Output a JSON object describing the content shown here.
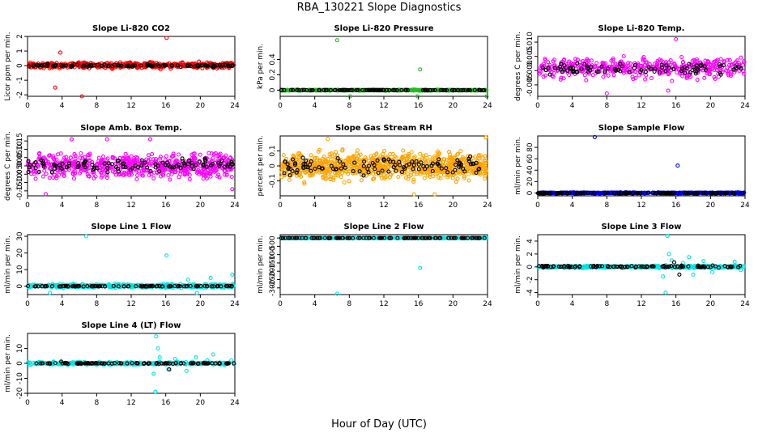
{
  "figure": {
    "title": "RBA_130221  Slope Diagnostics",
    "xlabel": "Hour of Day (UTC)"
  },
  "colors": {
    "red": "#ff0000",
    "green": "#22bb22",
    "magenta": "#ff00ff",
    "orange": "#ffa500",
    "blue": "#0000dd",
    "cyan": "#00e5e5",
    "black": "#000000"
  },
  "chart_data": [
    {
      "type": "scatter",
      "title": "Slope Li-820 CO2",
      "ylabel": "Licor ppm per min.",
      "xlim": [
        0,
        24
      ],
      "ylim": [
        -2.1,
        2.0
      ],
      "xticks": [
        0,
        4,
        8,
        12,
        16,
        20,
        24
      ],
      "yticks": [
        -2,
        -1,
        0,
        1,
        2
      ],
      "grid": false,
      "series": [
        {
          "color": "red",
          "band": [
            -0.3,
            0.35
          ],
          "n": 520,
          "outliers": [
            [
              3.8,
              0.9
            ],
            [
              3.2,
              -1.5
            ],
            [
              6.3,
              -2.1
            ],
            [
              16.1,
              1.9
            ],
            [
              6.7,
              0.15
            ]
          ]
        },
        {
          "color": "black",
          "band": [
            -0.15,
            0.15
          ],
          "n": 110
        }
      ]
    },
    {
      "type": "scatter",
      "title": "Slope Li-820 Pressure",
      "ylabel": "kPa per min.",
      "xlim": [
        0,
        24
      ],
      "ylim": [
        -0.08,
        0.7
      ],
      "xticks": [
        0,
        4,
        8,
        12,
        16,
        20,
        24
      ],
      "yticks": [
        0.0,
        0.2,
        0.4
      ],
      "grid": false,
      "series": [
        {
          "color": "green",
          "band": [
            -0.01,
            0.01
          ],
          "n": 520,
          "outliers": [
            [
              6.6,
              0.65
            ],
            [
              16.2,
              0.27
            ],
            [
              8.1,
              -0.08
            ],
            [
              15.9,
              -0.08
            ],
            [
              23.9,
              -0.08
            ]
          ]
        },
        {
          "color": "black",
          "band": [
            -0.005,
            0.005
          ],
          "n": 110
        }
      ]
    },
    {
      "type": "scatter",
      "title": "Slope Li-820 Temp.",
      "ylabel": "degrees C per min.",
      "xlim": [
        0,
        24
      ],
      "ylim": [
        -0.009,
        0.012
      ],
      "xticks": [
        0,
        4,
        8,
        12,
        16,
        20,
        24
      ],
      "yticks": [
        -0.005,
        0.0,
        0.005,
        0.01
      ],
      "yticklabels": [
        "-0.005",
        "0.000",
        "0.005",
        "0.010"
      ],
      "grid": false,
      "series": [
        {
          "color": "magenta",
          "band": [
            -0.005,
            0.007
          ],
          "n": 430,
          "outliers": [
            [
              16.0,
              0.011
            ],
            [
              8.0,
              -0.008
            ],
            [
              15.1,
              -0.007
            ]
          ]
        },
        {
          "color": "black",
          "band": [
            -0.003,
            0.004
          ],
          "n": 90
        }
      ]
    },
    {
      "type": "scatter",
      "title": "Slope Amb. Box Temp.",
      "ylabel": "degrees C per min.",
      "xlim": [
        0,
        24
      ],
      "ylim": [
        -0.18,
        0.18
      ],
      "xticks": [
        0,
        4,
        8,
        12,
        16,
        20,
        24
      ],
      "yticks": [
        -0.15,
        -0.1,
        -0.05,
        0.0,
        0.05,
        0.1,
        0.15
      ],
      "yticklabels": [
        "-0.15",
        "-0.10",
        "-0.05",
        "0.00",
        "0.05",
        "0.10",
        "0.15"
      ],
      "grid": false,
      "series": [
        {
          "color": "magenta",
          "band": [
            -0.12,
            0.12
          ],
          "n": 650,
          "outliers": [
            [
              5.1,
              0.16
            ],
            [
              2.1,
              -0.17
            ],
            [
              9.2,
              0.16
            ],
            [
              14.2,
              0.16
            ],
            [
              23.7,
              -0.14
            ]
          ]
        },
        {
          "color": "black",
          "band": [
            -0.07,
            0.07
          ],
          "n": 110
        }
      ]
    },
    {
      "type": "scatter",
      "title": "Slope Gas Stream RH",
      "ylabel": "percent per min.",
      "xlim": [
        0,
        24
      ],
      "ylim": [
        -0.2,
        0.2
      ],
      "xticks": [
        0,
        4,
        8,
        12,
        16,
        20,
        24
      ],
      "yticks": [
        -0.1,
        0.0,
        0.1
      ],
      "grid": false,
      "series": [
        {
          "color": "orange",
          "band": [
            -0.15,
            0.15
          ],
          "n": 900,
          "outliers": [
            [
              17.9,
              -0.19
            ],
            [
              15.5,
              -0.19
            ],
            [
              23.8,
              0.19
            ],
            [
              5.5,
              0.18
            ]
          ]
        },
        {
          "color": "black",
          "band": [
            -0.1,
            0.1
          ],
          "n": 110
        }
      ]
    },
    {
      "type": "scatter",
      "title": "Slope Sample Flow",
      "ylabel": "ml/min per min.",
      "xlim": [
        0,
        24
      ],
      "ylim": [
        -5,
        100
      ],
      "xticks": [
        0,
        4,
        8,
        12,
        16,
        20,
        24
      ],
      "yticks": [
        0,
        20,
        40,
        60,
        80
      ],
      "grid": false,
      "series": [
        {
          "color": "blue",
          "band": [
            -1.5,
            1.5
          ],
          "n": 520,
          "outliers": [
            [
              6.6,
              98
            ],
            [
              16.2,
              48
            ]
          ]
        },
        {
          "color": "black",
          "band": [
            -1,
            1
          ],
          "n": 110
        }
      ]
    },
    {
      "type": "scatter",
      "title": "Slope Line 1 Flow",
      "ylabel": "ml/min per min.",
      "xlim": [
        0,
        24
      ],
      "ylim": [
        -5,
        31
      ],
      "xticks": [
        0,
        4,
        8,
        12,
        16,
        20,
        24
      ],
      "yticks": [
        0,
        10,
        20,
        30
      ],
      "grid": false,
      "series": [
        {
          "color": "cyan",
          "band": [
            -1.5,
            2
          ],
          "n": 520,
          "outliers": [
            [
              6.8,
              30
            ],
            [
              16.1,
              18.5
            ],
            [
              2.6,
              -4
            ],
            [
              18.6,
              4
            ],
            [
              19.6,
              -4
            ],
            [
              23.7,
              7
            ],
            [
              21.2,
              5
            ]
          ]
        },
        {
          "color": "black",
          "band": [
            -0.3,
            0.3
          ],
          "n": 110
        }
      ]
    },
    {
      "type": "scatter",
      "title": "Slope Line 2 Flow",
      "ylabel": "ml/min per min.",
      "xlim": [
        0,
        24
      ],
      "ylim": [
        -340,
        20
      ],
      "xticks": [
        0,
        4,
        8,
        12,
        16,
        20,
        24
      ],
      "yticks": [
        -300,
        -250,
        -200,
        -150,
        -100,
        -50,
        0
      ],
      "grid": false,
      "series": [
        {
          "color": "cyan",
          "band": [
            -2,
            2
          ],
          "n": 520,
          "outliers": [
            [
              6.6,
              -335
            ],
            [
              16.2,
              -180
            ]
          ]
        },
        {
          "color": "black",
          "band": [
            -1,
            1
          ],
          "n": 110
        }
      ]
    },
    {
      "type": "scatter",
      "title": "Slope Line 3 Flow",
      "ylabel": "ml/min per min.",
      "xlim": [
        0,
        24
      ],
      "ylim": [
        -4.3,
        5
      ],
      "xticks": [
        0,
        4,
        8,
        12,
        16,
        20,
        24
      ],
      "yticks": [
        -4,
        -2,
        0,
        2,
        4
      ],
      "grid": false,
      "series": [
        {
          "color": "cyan",
          "band": [
            -0.3,
            0.3
          ],
          "n": 420,
          "outliers": [
            [
              15.0,
              4.8
            ],
            [
              14.8,
              -4.0
            ],
            [
              15.2,
              2.0
            ],
            [
              15.5,
              1.0
            ],
            [
              16.8,
              0.6
            ],
            [
              17.5,
              1.5
            ],
            [
              18.0,
              -1.2
            ],
            [
              19.2,
              0.9
            ],
            [
              20.2,
              -0.8
            ],
            [
              22.8,
              0.8
            ],
            [
              23.5,
              -0.5
            ],
            [
              14.5,
              -1.5
            ]
          ]
        },
        {
          "color": "black",
          "band": [
            -0.2,
            0.3
          ],
          "n": 110,
          "outliers": [
            [
              16.4,
              -1.2
            ],
            [
              15.8,
              0.7
            ]
          ]
        }
      ]
    },
    {
      "type": "scatter",
      "title": "Slope Line 4 (LT) Flow",
      "ylabel": "ml/min per min.",
      "xlim": [
        0,
        24
      ],
      "ylim": [
        -20,
        20
      ],
      "xticks": [
        0,
        4,
        8,
        12,
        16,
        20,
        24
      ],
      "yticks": [
        -20,
        -10,
        0,
        10
      ],
      "grid": false,
      "series": [
        {
          "color": "cyan",
          "band": [
            -1.5,
            1.5
          ],
          "n": 380,
          "outliers": [
            [
              14.9,
              18
            ],
            [
              14.8,
              -19
            ],
            [
              15.1,
              10
            ],
            [
              15.3,
              4
            ],
            [
              14.6,
              -7
            ],
            [
              16.3,
              -4
            ],
            [
              17.1,
              3
            ],
            [
              18.4,
              -5
            ],
            [
              19.5,
              4
            ],
            [
              20.8,
              2
            ],
            [
              21.5,
              6
            ],
            [
              22.8,
              -1
            ],
            [
              23.6,
              2
            ]
          ]
        },
        {
          "color": "black",
          "band": [
            -0.5,
            0.5
          ],
          "n": 110,
          "outliers": [
            [
              16.4,
              -4
            ],
            [
              3.9,
              1.2
            ]
          ]
        }
      ]
    }
  ]
}
